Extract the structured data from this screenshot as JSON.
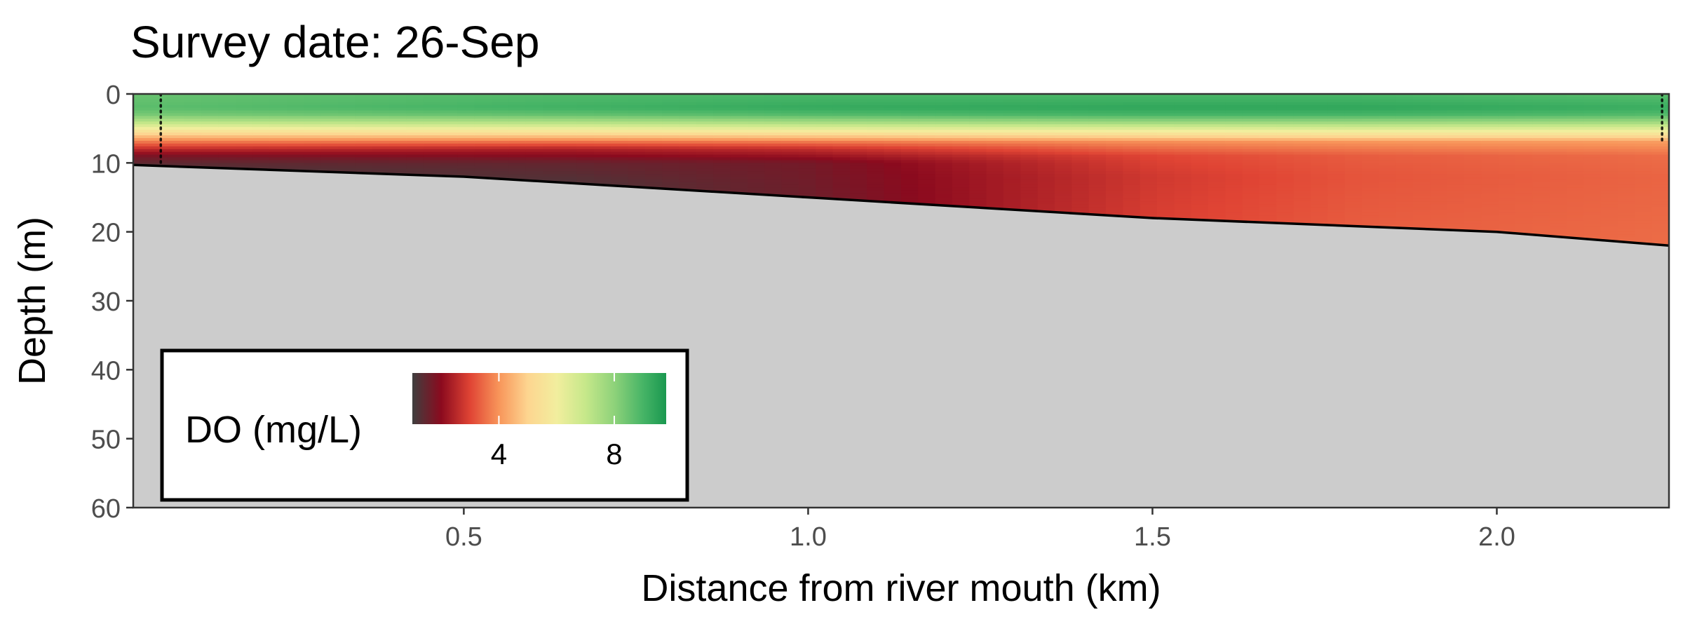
{
  "chart_data": {
    "type": "heatmap",
    "title": "Survey date: 26-Sep",
    "xlabel": "Distance from river mouth (km)",
    "ylabel": "Depth (m)",
    "xlim": [
      0.02,
      2.25
    ],
    "ylim": [
      0,
      60
    ],
    "y_reversed": true,
    "x_ticks": [
      0.5,
      1.0,
      1.5,
      2.0
    ],
    "x_tick_labels": [
      "0.5",
      "1.0",
      "1.5",
      "2.0"
    ],
    "y_ticks": [
      0,
      10,
      20,
      30,
      40,
      50,
      60
    ],
    "y_tick_labels": [
      "0",
      "10",
      "20",
      "30",
      "40",
      "50",
      "60"
    ],
    "grid": false,
    "colors": {
      "bottom_fill": "#cccccc",
      "panel_border": "#333333"
    },
    "bottom_profile": {
      "x": [
        0.02,
        0.5,
        1.0,
        1.5,
        2.0,
        2.25
      ],
      "depth": [
        10.3,
        12.0,
        15.0,
        18.0,
        20.0,
        22.0
      ]
    },
    "profile_stations": [
      {
        "x": 0.06,
        "depth_range": [
          0,
          10
        ]
      },
      {
        "x": 2.24,
        "depth_range": [
          0,
          7
        ]
      }
    ],
    "do_profiles": [
      {
        "x": 0.02,
        "depth": [
          0,
          2,
          3,
          4,
          5,
          6,
          7,
          8,
          9,
          10,
          11
        ],
        "do": [
          8.5,
          8.7,
          8.3,
          7.3,
          6.0,
          4.8,
          3.6,
          2.6,
          1.8,
          1.4,
          1.2
        ]
      },
      {
        "x": 0.65,
        "depth": [
          0,
          2,
          3,
          4,
          5,
          6,
          7,
          8,
          10,
          13
        ],
        "do": [
          8.8,
          9.1,
          8.6,
          7.5,
          6.2,
          4.9,
          3.5,
          2.4,
          1.5,
          1.2
        ]
      },
      {
        "x": 1.0,
        "depth": [
          0,
          2,
          3,
          4,
          5,
          6,
          7,
          8,
          10,
          15
        ],
        "do": [
          8.9,
          9.3,
          8.8,
          7.7,
          6.4,
          5.0,
          3.6,
          2.6,
          1.7,
          1.6
        ]
      },
      {
        "x": 1.5,
        "depth": [
          0,
          2,
          3,
          4,
          5,
          6,
          7,
          9,
          12,
          18
        ],
        "do": [
          8.9,
          9.4,
          9.0,
          7.9,
          6.5,
          5.2,
          3.9,
          3.0,
          2.8,
          2.9
        ]
      },
      {
        "x": 1.8,
        "depth": [
          0,
          2,
          3,
          4,
          5,
          6,
          7,
          9,
          12,
          19
        ],
        "do": [
          8.9,
          9.4,
          9.0,
          7.9,
          6.6,
          5.3,
          4.0,
          3.3,
          3.2,
          3.3
        ]
      },
      {
        "x": 2.25,
        "depth": [
          0,
          2,
          3,
          4,
          5,
          6,
          7,
          9,
          12,
          22
        ],
        "do": [
          8.7,
          9.2,
          8.8,
          7.8,
          6.5,
          5.3,
          4.1,
          3.5,
          3.4,
          3.5
        ]
      }
    ],
    "colorbar": {
      "title": "DO (mg/L)",
      "range": [
        1.0,
        9.8
      ],
      "ticks": [
        4,
        8
      ],
      "tick_labels": [
        "4",
        "8"
      ],
      "placement": "bottom-left",
      "stops": [
        {
          "value": 1.0,
          "color": "#3f3f3f"
        },
        {
          "value": 2.0,
          "color": "#8b0a1e"
        },
        {
          "value": 3.0,
          "color": "#e04434"
        },
        {
          "value": 4.0,
          "color": "#f8955a"
        },
        {
          "value": 5.0,
          "color": "#fdd590"
        },
        {
          "value": 6.0,
          "color": "#f2ee9e"
        },
        {
          "value": 7.0,
          "color": "#c6e88a"
        },
        {
          "value": 8.0,
          "color": "#8ed27a"
        },
        {
          "value": 9.0,
          "color": "#46b466"
        },
        {
          "value": 9.8,
          "color": "#1a9850"
        }
      ]
    }
  }
}
